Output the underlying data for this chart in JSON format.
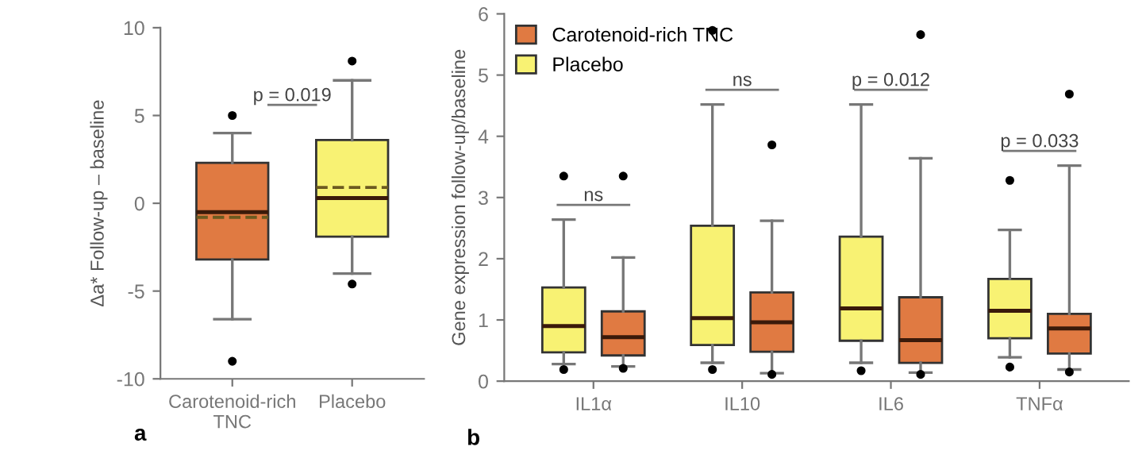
{
  "chart_data": [
    {
      "type": "box",
      "ylabel": "Δa* Follow-up – baseline",
      "categories": [
        "Carotenoid-rich\nTNC",
        "Placebo"
      ],
      "colors": [
        "#e07a42",
        "#f8f273"
      ],
      "boxes": [
        {
          "low": -6.6,
          "q1": -3.2,
          "median": -0.5,
          "q3": 2.3,
          "high": 4.0,
          "mean": -0.8,
          "outliers": [
            5.0,
            -9.0
          ]
        },
        {
          "low": -4.0,
          "q1": -1.9,
          "median": 0.3,
          "q3": 3.6,
          "high": 7.0,
          "mean": 0.9,
          "outliers": [
            8.1,
            -4.6
          ]
        }
      ],
      "ylim": [
        -10,
        10
      ],
      "yticks": [
        -10,
        -5,
        0,
        5,
        10
      ],
      "grid": false,
      "legend": false,
      "annotations": [
        "a",
        "p = 0.019"
      ]
    },
    {
      "type": "box",
      "ylabel": "Gene expression follow-up/baseline",
      "categories": [
        "IL1α",
        "IL10",
        "IL6",
        "TNFα"
      ],
      "series": [
        {
          "name": "Placebo",
          "color": "#f8f273",
          "boxes": [
            {
              "low": 0.28,
              "q1": 0.47,
              "median": 0.9,
              "q3": 1.53,
              "high": 2.64,
              "outliers": [
                3.35,
                0.19
              ]
            },
            {
              "low": 0.3,
              "q1": 0.59,
              "median": 1.03,
              "q3": 2.54,
              "high": 4.52,
              "outliers": [
                5.73,
                0.19
              ]
            },
            {
              "low": 0.3,
              "q1": 0.66,
              "median": 1.19,
              "q3": 2.36,
              "high": 4.52,
              "outliers": [
                0.17
              ]
            },
            {
              "low": 0.39,
              "q1": 0.7,
              "median": 1.15,
              "q3": 1.67,
              "high": 2.47,
              "outliers": [
                3.28,
                0.23
              ]
            }
          ]
        },
        {
          "name": "Carotenoid-rich TNC",
          "color": "#e07a42",
          "boxes": [
            {
              "low": 0.24,
              "q1": 0.42,
              "median": 0.72,
              "q3": 1.14,
              "high": 2.02,
              "outliers": [
                3.35,
                0.21
              ]
            },
            {
              "low": 0.13,
              "q1": 0.48,
              "median": 0.96,
              "q3": 1.45,
              "high": 2.62,
              "outliers": [
                3.86,
                0.11
              ]
            },
            {
              "low": 0.14,
              "q1": 0.3,
              "median": 0.67,
              "q3": 1.37,
              "high": 3.64,
              "outliers": [
                5.66,
                0.11
              ]
            },
            {
              "low": 0.19,
              "q1": 0.45,
              "median": 0.86,
              "q3": 1.1,
              "high": 3.52,
              "outliers": [
                4.69,
                0.15
              ]
            }
          ]
        }
      ],
      "ylim": [
        0,
        6
      ],
      "yticks": [
        0,
        1,
        2,
        3,
        4,
        5,
        6
      ],
      "grid": false,
      "legend": "top left",
      "annotations": [
        "b",
        "ns",
        "ns",
        "p = 0.012",
        "p = 0.033"
      ]
    }
  ]
}
